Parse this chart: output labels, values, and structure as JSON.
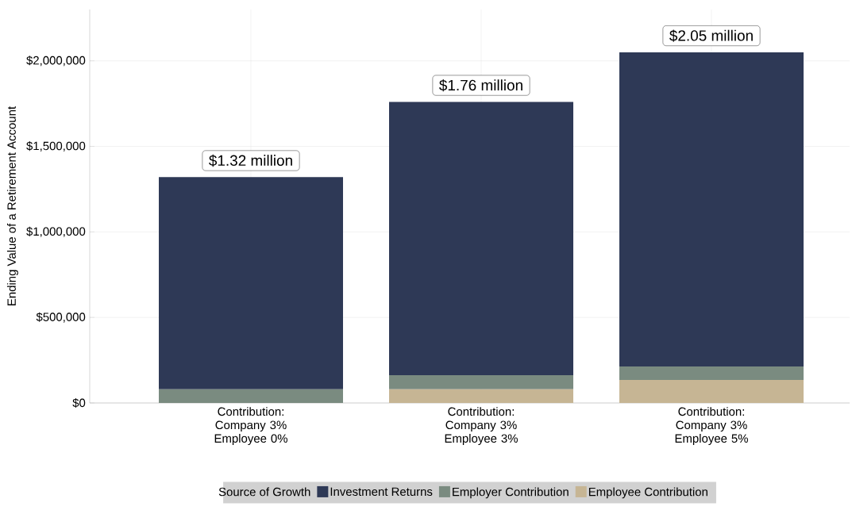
{
  "chart_data": {
    "type": "bar",
    "stacked": true,
    "ylabel": "Ending Value of a Retirement Account",
    "legend_title": "Source of Growth",
    "categories": [
      "Contribution: Company 3% Employee 0%",
      "Contribution: Company 3% Employee 3%",
      "Contribution: Company 3% Employee 5%"
    ],
    "series": [
      {
        "name": "Employee Contribution",
        "color": "#c6b594",
        "values": [
          0,
          80000,
          135000
        ]
      },
      {
        "name": "Employer Contribution",
        "color": "#7a8b80",
        "values": [
          80000,
          82000,
          78000
        ]
      },
      {
        "name": "Investment Returns",
        "color": "#2e3956",
        "values": [
          1240000,
          1598000,
          1837000
        ]
      }
    ],
    "totals": [
      "$1.32 million",
      "$1.76 million",
      "$2.05 million"
    ],
    "ylim": [
      0,
      2300000
    ],
    "yticks": [
      {
        "value": 0,
        "label": "$0"
      },
      {
        "value": 500000,
        "label": "$500,000"
      },
      {
        "value": 1000000,
        "label": "$1,000,000"
      },
      {
        "value": 1500000,
        "label": "$1,500,000"
      },
      {
        "value": 2000000,
        "label": "$2,000,000"
      }
    ],
    "grid": true,
    "legend": "bottom"
  }
}
